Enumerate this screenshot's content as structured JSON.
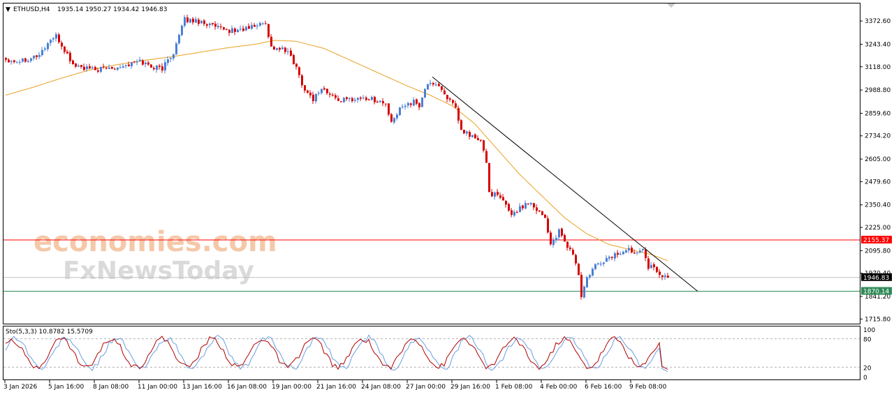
{
  "chart_data": [
    {
      "type": "candlestick",
      "header": {
        "arrow": "▼",
        "symbol": "ETHUSD,H4",
        "ohlc": "1935.14 1950.27 1934.42 1946.83"
      },
      "watermark": {
        "line1": "economies.com",
        "line2": "FxNewsToday"
      },
      "y_axis": {
        "ylim": [
          1690,
          3470
        ],
        "ticks": [
          3372.6,
          3243.4,
          3118.0,
          2988.8,
          2859.6,
          2734.2,
          2605.0,
          2479.6,
          2350.4,
          2225.0,
          2095.8,
          1970.4,
          1841.2,
          1715.8
        ],
        "tick_labels": [
          "3372.60",
          "3243.40",
          "3118.00",
          "2988.80",
          "2859.60",
          "2734.20",
          "2605.00",
          "2479.60",
          "2350.40",
          "2225.00",
          "2095.80",
          "1970.40",
          "1841.20",
          "1715.80"
        ]
      },
      "x_axis": {
        "labels": [
          "3 Jan 2026",
          "5 Jan 16:00",
          "8 Jan 08:00",
          "11 Jan 00:00",
          "13 Jan 16:00",
          "16 Jan 08:00",
          "19 Jan 00:00",
          "21 Jan 16:00",
          "24 Jan 08:00",
          "27 Jan 00:00",
          "29 Jan 16:00",
          "1 Feb 08:00",
          "4 Feb 00:00",
          "6 Feb 16:00",
          "9 Feb 08:00"
        ],
        "label_bar_index": [
          0,
          16,
          32,
          48,
          64,
          80,
          96,
          112,
          128,
          144,
          160,
          176,
          192,
          208,
          224
        ]
      },
      "horizontal_lines": [
        {
          "price": 2155.37,
          "label": "2155.37",
          "color": "#ff0000",
          "label_bg": "#ff0000",
          "label_fg": "#ffffff"
        },
        {
          "price": 1946.83,
          "label": "1946.83",
          "color": "#c0c0c0",
          "label_bg": "#000000",
          "label_fg": "#ffffff"
        },
        {
          "price": 1870.14,
          "label": "1870.14",
          "color": "#2e8b57",
          "label_bg": "#2e8b57",
          "label_fg": "#ffffff"
        }
      ],
      "trendline": {
        "from": {
          "bar": 153,
          "price": 3062
        },
        "to": {
          "bar": 248,
          "price": 1870
        },
        "color": "#000000"
      },
      "moving_average_color": "#e8a020",
      "colors": {
        "bull": "#4a7fd4",
        "bear": "#d40000"
      },
      "close_anchors": [
        [
          0,
          3160
        ],
        [
          4,
          3150
        ],
        [
          8,
          3165
        ],
        [
          12,
          3185
        ],
        [
          16,
          3270
        ],
        [
          18,
          3285
        ],
        [
          21,
          3210
        ],
        [
          24,
          3130
        ],
        [
          28,
          3110
        ],
        [
          32,
          3100
        ],
        [
          36,
          3110
        ],
        [
          40,
          3120
        ],
        [
          44,
          3130
        ],
        [
          48,
          3150
        ],
        [
          52,
          3120
        ],
        [
          56,
          3110
        ],
        [
          60,
          3200
        ],
        [
          64,
          3380
        ],
        [
          70,
          3370
        ],
        [
          74,
          3345
        ],
        [
          78,
          3320
        ],
        [
          82,
          3320
        ],
        [
          86,
          3330
        ],
        [
          90,
          3350
        ],
        [
          93,
          3365
        ],
        [
          95,
          3225
        ],
        [
          99,
          3215
        ],
        [
          102,
          3180
        ],
        [
          104,
          3110
        ],
        [
          107,
          2990
        ],
        [
          110,
          2940
        ],
        [
          113,
          3000
        ],
        [
          116,
          2960
        ],
        [
          120,
          2930
        ],
        [
          124,
          2940
        ],
        [
          128,
          2945
        ],
        [
          132,
          2935
        ],
        [
          136,
          2910
        ],
        [
          138,
          2800
        ],
        [
          142,
          2910
        ],
        [
          146,
          2920
        ],
        [
          148,
          2900
        ],
        [
          150,
          3000
        ],
        [
          153,
          3030
        ],
        [
          155,
          3010
        ],
        [
          158,
          2950
        ],
        [
          161,
          2880
        ],
        [
          163,
          2760
        ],
        [
          166,
          2740
        ],
        [
          170,
          2700
        ],
        [
          172,
          2590
        ],
        [
          173,
          2420
        ],
        [
          176,
          2400
        ],
        [
          179,
          2350
        ],
        [
          181,
          2300
        ],
        [
          184,
          2330
        ],
        [
          187,
          2370
        ],
        [
          190,
          2330
        ],
        [
          193,
          2280
        ],
        [
          195,
          2130
        ],
        [
          198,
          2200
        ],
        [
          200,
          2140
        ],
        [
          203,
          2080
        ],
        [
          205,
          1960
        ],
        [
          206,
          1840
        ],
        [
          208,
          1940
        ],
        [
          211,
          2010
        ],
        [
          215,
          2050
        ],
        [
          219,
          2080
        ],
        [
          223,
          2100
        ],
        [
          226,
          2090
        ],
        [
          228,
          2120
        ],
        [
          230,
          2010
        ],
        [
          233,
          1990
        ],
        [
          235,
          1950
        ],
        [
          237,
          1946.83
        ]
      ],
      "ma_anchors": [
        [
          0,
          2960
        ],
        [
          10,
          3005
        ],
        [
          20,
          3055
        ],
        [
          30,
          3100
        ],
        [
          40,
          3130
        ],
        [
          50,
          3155
        ],
        [
          60,
          3175
        ],
        [
          70,
          3200
        ],
        [
          80,
          3225
        ],
        [
          90,
          3245
        ],
        [
          96,
          3265
        ],
        [
          104,
          3260
        ],
        [
          114,
          3220
        ],
        [
          124,
          3150
        ],
        [
          134,
          3080
        ],
        [
          144,
          3010
        ],
        [
          152,
          2960
        ],
        [
          160,
          2900
        ],
        [
          168,
          2800
        ],
        [
          176,
          2660
        ],
        [
          184,
          2520
        ],
        [
          192,
          2400
        ],
        [
          200,
          2280
        ],
        [
          208,
          2190
        ],
        [
          216,
          2130
        ],
        [
          224,
          2100
        ],
        [
          231,
          2075
        ],
        [
          237,
          2040
        ]
      ]
    },
    {
      "type": "line",
      "title": "Sto(5,3,3) 10.8782 15.5709",
      "ylim": [
        0,
        100
      ],
      "tick_labels": [
        "100",
        "80",
        "20",
        "0"
      ],
      "levels": [
        80,
        20
      ],
      "series": [
        {
          "color": "#6a9ee0",
          "period": 18,
          "amplitude": 32,
          "phase": 0.3
        },
        {
          "color": "#b00000",
          "period": 18,
          "amplitude": 30,
          "phase": 0.9
        }
      ],
      "last_values": [
        10.8782,
        15.5709
      ]
    }
  ]
}
